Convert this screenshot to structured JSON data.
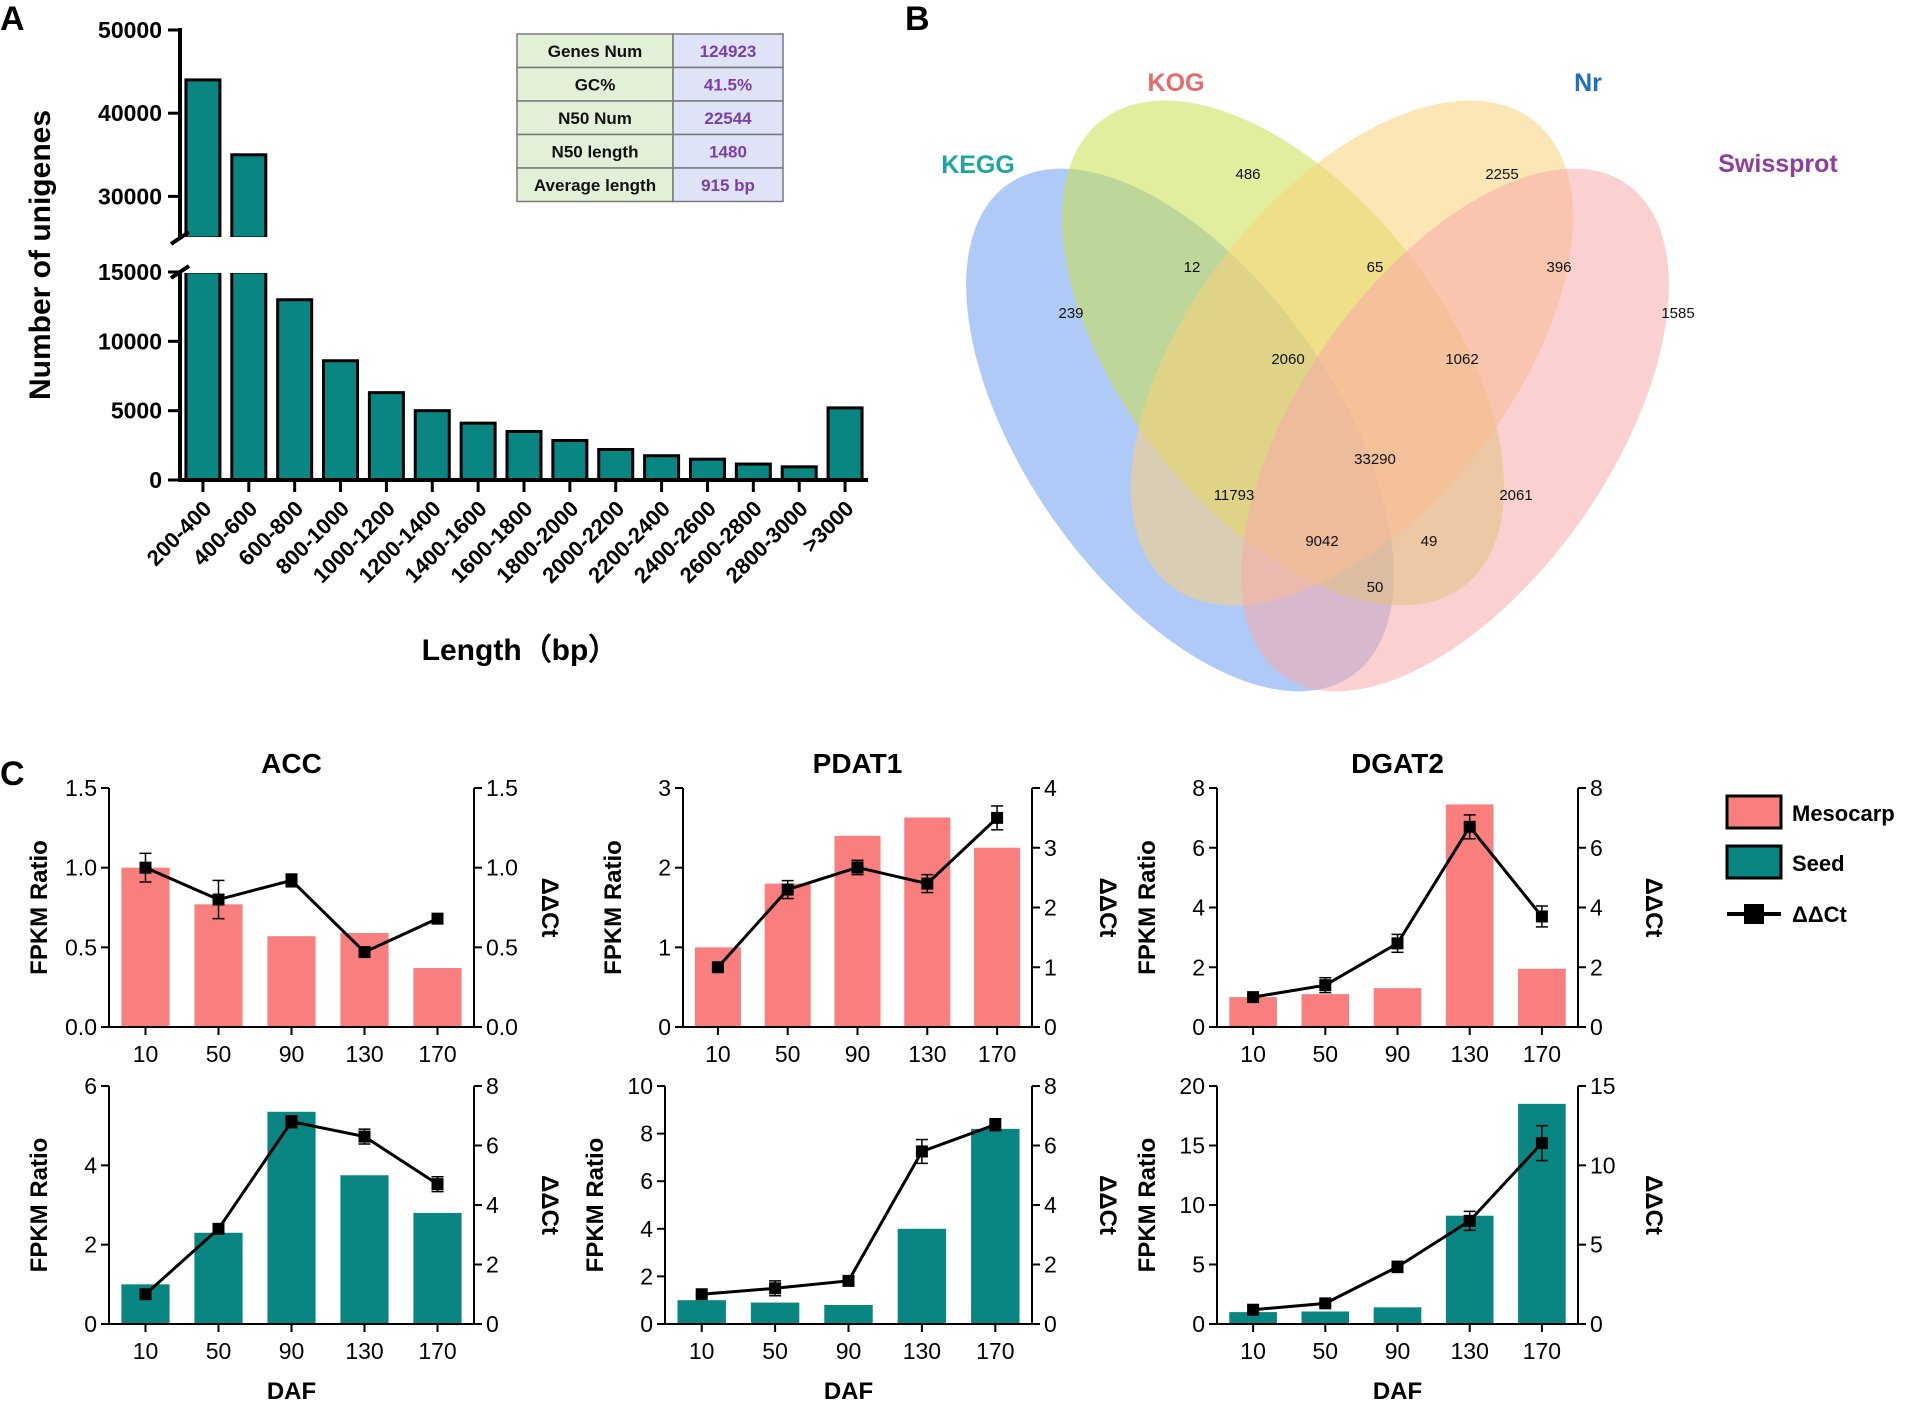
{
  "panels": {
    "A": "A",
    "B": "B",
    "C": "C"
  },
  "stats_table": {
    "rows": [
      {
        "label": "Genes Num",
        "value": "124923"
      },
      {
        "label": "GC%",
        "value": "41.5%"
      },
      {
        "label": "N50 Num",
        "value": "22544"
      },
      {
        "label": "N50 length",
        "value": "1480"
      },
      {
        "label": "Average length",
        "value": "915 bp"
      }
    ]
  },
  "colors": {
    "teal": "#098582",
    "salmon": "#f97f7f",
    "table_label_bg": "#e3f0d8",
    "table_value_bg": "#dfe3f7",
    "table_value_text": "#7b3fa8",
    "kegg": "#1ba6a3",
    "kog": "#e8696a",
    "nr": "#1f6fbf",
    "swissprot": "#8e3ea1"
  },
  "legend": {
    "mesocarp": "Mesocarp",
    "seed": "Seed",
    "ddct": "ΔΔCt"
  },
  "venn": {
    "sets": [
      {
        "key": "kegg",
        "name": "KEGG",
        "fill": "#6f9ff2"
      },
      {
        "key": "kog",
        "name": "KOG",
        "fill": "#c9e04d"
      },
      {
        "key": "nr",
        "name": "Nr",
        "fill": "#fcd27a"
      },
      {
        "key": "swissprot",
        "name": "Swissprot",
        "fill": "#f8a9a9"
      }
    ],
    "regions": [
      {
        "sets": "KOG only",
        "value": "486"
      },
      {
        "sets": "Nr only",
        "value": "2255"
      },
      {
        "sets": "KEGG only",
        "value": "239"
      },
      {
        "sets": "Swissprot only",
        "value": "1585"
      },
      {
        "sets": "KEGG+KOG",
        "value": "12"
      },
      {
        "sets": "KOG+Nr",
        "value": "65"
      },
      {
        "sets": "Nr+Swissprot",
        "value": "396"
      },
      {
        "sets": "KEGG+KOG+Nr",
        "value": "2060"
      },
      {
        "sets": "KOG+Nr+Swissprot",
        "value": "1062"
      },
      {
        "sets": "All four",
        "value": "33290"
      },
      {
        "sets": "KEGG+Nr",
        "value": "11793"
      },
      {
        "sets": "KOG+Swissprot",
        "value": "2061"
      },
      {
        "sets": "KEGG+Nr+Swissprot",
        "value": "9042"
      },
      {
        "sets": "KEGG+KOG+Swissprot",
        "value": "49"
      },
      {
        "sets": "KEGG+Swissprot",
        "value": "50"
      }
    ]
  },
  "chart_data": [
    {
      "id": "A",
      "type": "bar",
      "title": "",
      "xlabel": "Length（bp）",
      "ylabel": "Number of unigenes",
      "categories": [
        "200-400",
        "400-600",
        "600-800",
        "800-1000",
        "1000-1200",
        "1200-1400",
        "1400-1600",
        "1600-1800",
        "1800-2000",
        "2000-2200",
        "2200-2400",
        "2400-2600",
        "2600-2800",
        "2800-3000",
        ">3000"
      ],
      "values": [
        44000,
        35000,
        13000,
        8600,
        6300,
        5000,
        4100,
        3500,
        2850,
        2200,
        1750,
        1500,
        1150,
        950,
        5200
      ],
      "y_axis_break": {
        "lower": [
          0,
          15000
        ],
        "upper": [
          25000,
          50000
        ]
      },
      "yticks_lower": [
        "0",
        "5000",
        "10000",
        "15000"
      ],
      "yticks_upper": [
        "30000",
        "40000",
        "50000"
      ]
    },
    {
      "id": "ACC_mesocarp",
      "type": "bar",
      "title": "ACC",
      "categories": [
        "10",
        "50",
        "90",
        "130",
        "170"
      ],
      "values": [
        1.0,
        0.77,
        0.57,
        0.59,
        0.37
      ],
      "ylabel": "FPKM Ratio",
      "ylim": [
        0,
        1.5
      ],
      "yticks": [
        "0.0",
        "0.5",
        "1.0",
        "1.5"
      ],
      "y2label": "ΔΔCt",
      "y2lim": [
        0,
        1.5
      ],
      "y2ticks": [
        "0.0",
        "0.5",
        "1.0",
        "1.5"
      ],
      "line": {
        "name": "ΔΔCt",
        "values": [
          1.0,
          0.8,
          0.92,
          0.47,
          0.68
        ],
        "errors": [
          0.09,
          0.12,
          0.04,
          0.03,
          0.03
        ]
      }
    },
    {
      "id": "PDAT1_mesocarp",
      "type": "bar",
      "title": "PDAT1",
      "categories": [
        "10",
        "50",
        "90",
        "130",
        "170"
      ],
      "values": [
        1.0,
        1.8,
        2.4,
        2.63,
        2.25
      ],
      "ylabel": "FPKM Ratio",
      "ylim": [
        0,
        3
      ],
      "yticks": [
        "0",
        "1",
        "2",
        "3"
      ],
      "y2label": "ΔΔCt",
      "y2lim": [
        0,
        4
      ],
      "y2ticks": [
        "0",
        "1",
        "2",
        "3",
        "4"
      ],
      "line": {
        "name": "ΔΔCt",
        "values": [
          1.0,
          2.3,
          2.67,
          2.4,
          3.5
        ],
        "errors": [
          0.04,
          0.15,
          0.12,
          0.15,
          0.2
        ]
      }
    },
    {
      "id": "DGAT2_mesocarp",
      "type": "bar",
      "title": "DGAT2",
      "categories": [
        "10",
        "50",
        "90",
        "130",
        "170"
      ],
      "values": [
        1.0,
        1.1,
        1.3,
        7.45,
        1.95
      ],
      "ylabel": "FPKM Ratio",
      "ylim": [
        0,
        8
      ],
      "yticks": [
        "0",
        "2",
        "4",
        "6",
        "8"
      ],
      "y2label": "ΔΔCt",
      "y2lim": [
        0,
        8
      ],
      "y2ticks": [
        "0",
        "2",
        "4",
        "6",
        "8"
      ],
      "line": {
        "name": "ΔΔCt",
        "values": [
          1.0,
          1.4,
          2.8,
          6.7,
          3.7
        ],
        "errors": [
          0.05,
          0.25,
          0.3,
          0.4,
          0.35
        ]
      }
    },
    {
      "id": "ACC_seed",
      "type": "bar",
      "title": "",
      "categories": [
        "10",
        "50",
        "90",
        "130",
        "170"
      ],
      "values": [
        1.0,
        2.3,
        5.35,
        3.75,
        2.8
      ],
      "xlabel": "DAF",
      "ylabel": "FPKM Ratio",
      "ylim": [
        0,
        6
      ],
      "yticks": [
        "0",
        "2",
        "4",
        "6"
      ],
      "y2label": "ΔΔCt",
      "y2lim": [
        0,
        8
      ],
      "y2ticks": [
        "0",
        "2",
        "4",
        "6",
        "8"
      ],
      "line": {
        "name": "ΔΔCt",
        "values": [
          1.0,
          3.2,
          6.8,
          6.3,
          4.7
        ],
        "errors": [
          0.05,
          0.1,
          0.2,
          0.25,
          0.25
        ]
      }
    },
    {
      "id": "PDAT1_seed",
      "type": "bar",
      "title": "",
      "categories": [
        "10",
        "50",
        "90",
        "130",
        "170"
      ],
      "values": [
        1.0,
        0.9,
        0.8,
        4.0,
        8.2
      ],
      "xlabel": "DAF",
      "ylabel": "FPKM Ratio",
      "ylim": [
        0,
        10
      ],
      "yticks": [
        "0",
        "2",
        "4",
        "6",
        "8",
        "10"
      ],
      "y2label": "ΔΔCt",
      "y2lim": [
        0,
        8
      ],
      "y2ticks": [
        "0",
        "2",
        "4",
        "6",
        "8"
      ],
      "line": {
        "name": "ΔΔCt",
        "values": [
          1.0,
          1.2,
          1.45,
          5.8,
          6.7
        ],
        "errors": [
          0.05,
          0.25,
          0.05,
          0.4,
          0.2
        ]
      }
    },
    {
      "id": "DGAT2_seed",
      "type": "bar",
      "title": "",
      "categories": [
        "10",
        "50",
        "90",
        "130",
        "170"
      ],
      "values": [
        1.0,
        1.05,
        1.4,
        9.1,
        18.5
      ],
      "xlabel": "DAF",
      "ylabel": "FPKM Ratio",
      "ylim": [
        0,
        20
      ],
      "yticks": [
        "0",
        "5",
        "10",
        "15",
        "20"
      ],
      "y2label": "ΔΔCt",
      "y2lim": [
        0,
        15
      ],
      "y2ticks": [
        "0",
        "5",
        "10",
        "15"
      ],
      "line": {
        "name": "ΔΔCt",
        "values": [
          0.9,
          1.3,
          3.6,
          6.5,
          11.4
        ],
        "errors": [
          0.15,
          0.15,
          0.35,
          0.6,
          1.1
        ]
      }
    }
  ]
}
